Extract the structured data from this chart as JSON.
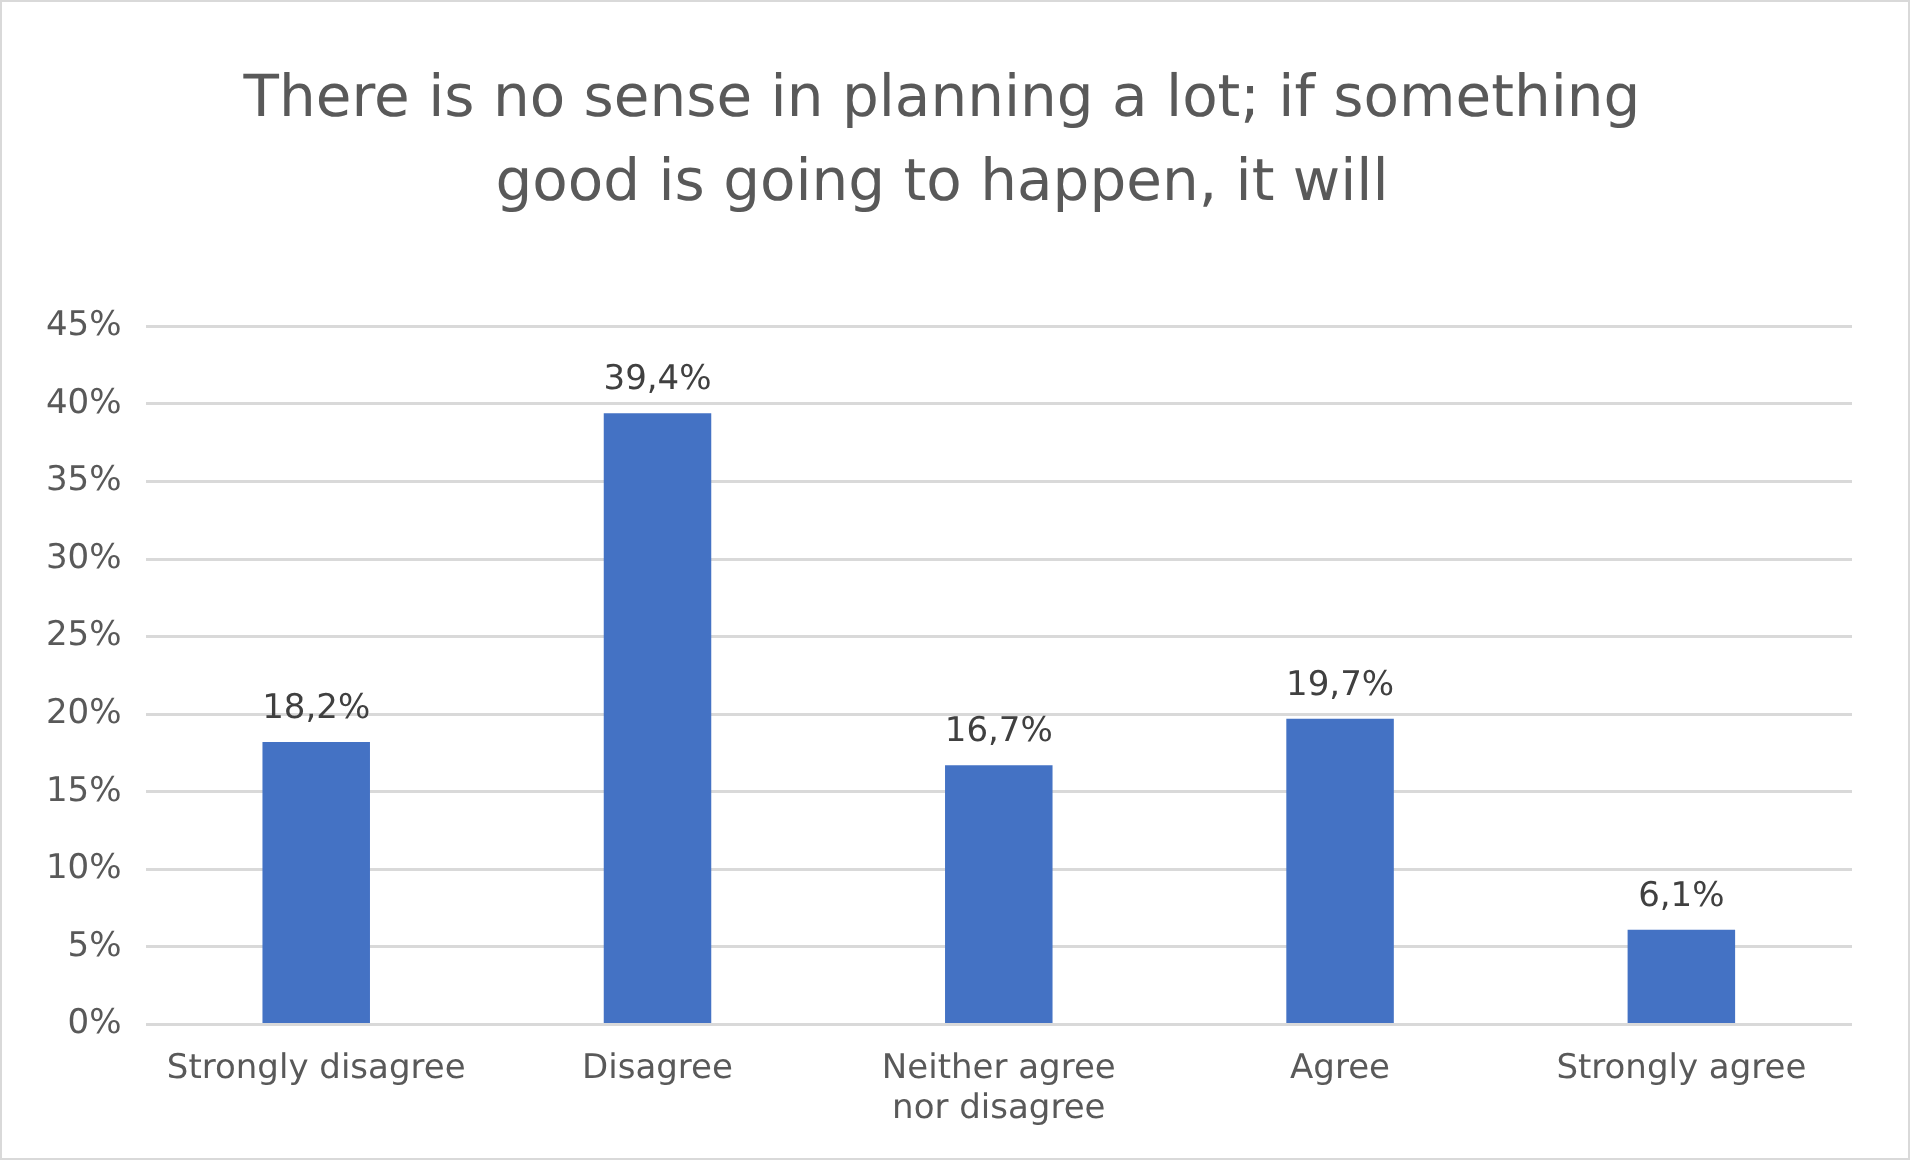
{
  "chart_data": {
    "type": "bar",
    "title": "There is no sense in planning a lot; if something good is going to happen, it will",
    "categories": [
      "Strongly disagree",
      "Disagree",
      "Neither agree nor disagree",
      "Agree",
      "Strongly agree"
    ],
    "values": [
      18.2,
      39.4,
      16.7,
      19.7,
      6.1
    ],
    "color": "#4472c4",
    "value_labels": [
      "18,2%",
      "39,4%",
      "16,7%",
      "19,7%",
      "6,1%"
    ],
    "ylim": [
      0,
      45
    ],
    "yticks": [
      {
        "value": 0,
        "label": "0%"
      },
      {
        "value": 5,
        "label": "5%"
      },
      {
        "value": 10,
        "label": "10%"
      },
      {
        "value": 15,
        "label": "15%"
      },
      {
        "value": 20,
        "label": "20%"
      },
      {
        "value": 25,
        "label": "25%"
      },
      {
        "value": 30,
        "label": "30%"
      },
      {
        "value": 35,
        "label": "35%"
      },
      {
        "value": 40,
        "label": "40%"
      },
      {
        "value": 45,
        "label": "45%"
      }
    ],
    "grid": "y",
    "legend": false
  }
}
